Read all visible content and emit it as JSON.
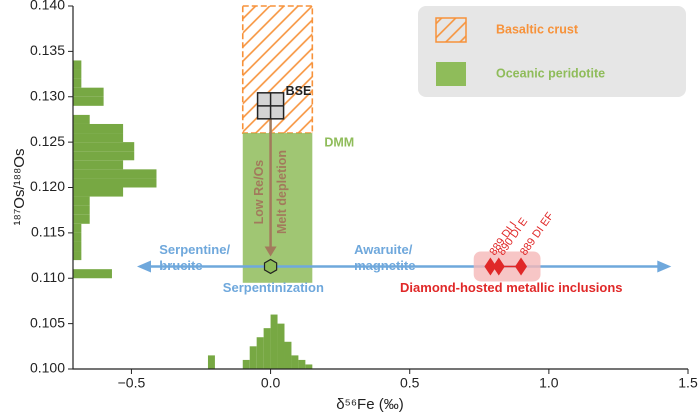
{
  "chart_data": {
    "type": "scatter",
    "x_label": "δ⁵⁶Fe (‰)",
    "y_label": "¹⁸⁷Os/¹⁸⁸Os",
    "xlim": [
      -0.71,
      1.5
    ],
    "ylim": [
      0.1,
      0.14
    ],
    "xticks": [
      {
        "value": -0.5,
        "label": "−0.5"
      },
      {
        "value": 0,
        "label": "0.0"
      },
      {
        "value": 0.5,
        "label": "0.5"
      },
      {
        "value": 1.0,
        "label": "1.0"
      },
      {
        "value": 1.5,
        "label": "1.5"
      }
    ],
    "yticks": [
      {
        "value": 0.1,
        "label": "0.100"
      },
      {
        "value": 0.105,
        "label": "0.105"
      },
      {
        "value": 0.11,
        "label": "0.110"
      },
      {
        "value": 0.115,
        "label": "0.115"
      },
      {
        "value": 0.12,
        "label": "0.120"
      },
      {
        "value": 0.125,
        "label": "0.125"
      },
      {
        "value": 0.13,
        "label": "0.130"
      },
      {
        "value": 0.135,
        "label": "0.135"
      },
      {
        "value": 0.14,
        "label": "0.140"
      }
    ],
    "legend": {
      "position": "upper right",
      "entries": [
        {
          "name": "Basaltic crust",
          "color": "#f7923a",
          "hatch": true,
          "xrange": [
            -0.1,
            0.15
          ],
          "yrange": [
            0.126,
            0.14
          ]
        },
        {
          "name": "Oceanic peridotite",
          "color": "#8fbc5a",
          "hatch": false,
          "xrange": [
            -0.1,
            0.15
          ],
          "yrange": [
            0.1095,
            0.126
          ]
        }
      ]
    },
    "left_histogram": {
      "color": "#77a843",
      "bins": [
        0.11,
        0.111,
        0.112,
        0.113,
        0.114,
        0.115,
        0.116,
        0.117,
        0.118,
        0.119,
        0.12,
        0.121,
        0.122,
        0.123,
        0.124,
        0.125,
        0.126,
        0.127,
        0.128,
        0.129,
        0.13,
        0.131,
        0.132,
        0.133,
        0.134
      ],
      "values": [
        -0.57,
        -0.71,
        -0.68,
        -0.68,
        -0.68,
        -0.68,
        -0.65,
        -0.65,
        -0.65,
        -0.53,
        -0.41,
        -0.41,
        -0.53,
        -0.49,
        -0.49,
        -0.53,
        -0.53,
        -0.65,
        -0.71,
        -0.6,
        -0.6,
        -0.68,
        -0.68,
        -0.68
      ]
    },
    "bottom_histogram": {
      "color": "#77a843",
      "bins": [
        -0.225,
        -0.2,
        -0.175,
        -0.15,
        -0.125,
        -0.1,
        -0.075,
        -0.05,
        -0.025,
        0,
        0.025,
        0.05,
        0.075,
        0.1,
        0.125,
        0.15
      ],
      "values": [
        0.1015,
        0.1,
        0.1,
        0.1,
        0.1,
        0.101,
        0.1025,
        0.1035,
        0.1045,
        0.106,
        0.105,
        0.103,
        0.1015,
        0.101,
        0.1005
      ]
    },
    "bse": {
      "label": "BSE",
      "x": 0,
      "y": 0.129,
      "color": "#d4d4d4"
    },
    "dmm_label": "DMM",
    "melt_arrow": {
      "labels": [
        "Low Re/Os",
        "Melt depletion"
      ],
      "x": 0,
      "y": [
        0.1276,
        0.1124
      ],
      "color": "#a27a5c"
    },
    "serpentinization": {
      "color": "#6fa8dc",
      "x": [
        -0.48,
        1.44
      ],
      "y": 0.1113,
      "labels_left": [
        "Serpentine/",
        "brucite"
      ],
      "labels_right": [
        "Awaruite/",
        "magnetite"
      ],
      "label": "Serpentinization",
      "point": {
        "x": 0,
        "y": 0.1113,
        "color": "#8fbc5a"
      }
    },
    "inclusions": {
      "label": "Diamond-hosted metallic inclusions",
      "color": "#e02828",
      "band_color": "#f5b8b8",
      "series": [
        {
          "name": "889 DI I",
          "x": 0.79,
          "y": 0.1113
        },
        {
          "name": "890 DI E",
          "x": 0.82,
          "y": 0.1113
        },
        {
          "name": "889 DI EF",
          "x": 0.9,
          "y": 0.1113
        }
      ]
    }
  }
}
